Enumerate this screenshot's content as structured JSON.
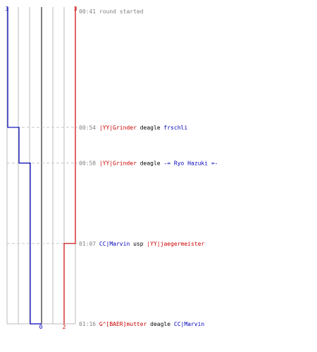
{
  "score": {
    "blue_start": "3",
    "red_start": "3",
    "blue_end": "0",
    "red_end": "2"
  },
  "colors": {
    "blue": "#0000bb",
    "red": "#cc0000",
    "gray_text": "#808080",
    "grid": "#bbbbbb",
    "axis": "#555555"
  },
  "events": [
    {
      "time": "00:41",
      "parts": [
        {
          "text": "round started",
          "color": "gray"
        }
      ],
      "blue_alive": 3,
      "red_alive": 3
    },
    {
      "time": "00:54",
      "parts": [
        {
          "text": "|YY|Grinder",
          "color": "red"
        },
        {
          "text": " deagle ",
          "color": "black"
        },
        {
          "text": "frschli",
          "color": "blue"
        }
      ],
      "blue_alive": 2,
      "red_alive": 3
    },
    {
      "time": "00:58",
      "parts": [
        {
          "text": "|YY|Grinder",
          "color": "red"
        },
        {
          "text": " deagle ",
          "color": "black"
        },
        {
          "text": "-= Ryo Hazuki =-",
          "color": "blue"
        }
      ],
      "blue_alive": 1,
      "red_alive": 3
    },
    {
      "time": "01:07",
      "parts": [
        {
          "text": "CC|Marvin",
          "color": "blue"
        },
        {
          "text": " usp ",
          "color": "black"
        },
        {
          "text": "|YY|jaegermeister",
          "color": "red"
        }
      ],
      "blue_alive": 1,
      "red_alive": 2
    },
    {
      "time": "01:16",
      "parts": [
        {
          "text": "G^[BAER]mutter",
          "color": "red"
        },
        {
          "text": " deagle ",
          "color": "black"
        },
        {
          "text": "CC|Marvin",
          "color": "blue"
        }
      ],
      "blue_alive": 0,
      "red_alive": 2
    }
  ]
}
